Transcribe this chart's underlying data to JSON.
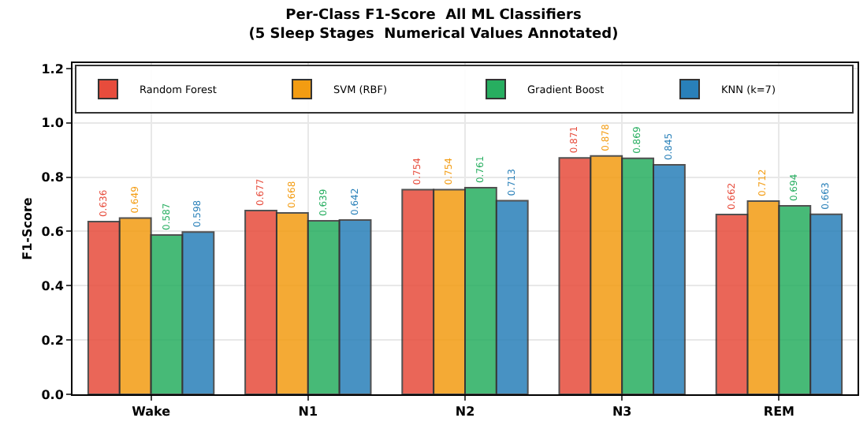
{
  "chart_data": {
    "type": "bar",
    "title": "Per-Class F1-Score  All ML Classifiers",
    "subtitle": "(5 Sleep Stages  Numerical Values Annotated)",
    "ylabel": "F1-Score",
    "categories": [
      "Wake",
      "N1",
      "N2",
      "N3",
      "REM"
    ],
    "series": [
      {
        "name": "Random Forest",
        "color": "#e74c3c",
        "values": [
          0.636,
          0.677,
          0.754,
          0.871,
          0.662
        ]
      },
      {
        "name": "SVM (RBF)",
        "color": "#f39c12",
        "values": [
          0.649,
          0.668,
          0.754,
          0.878,
          0.712
        ]
      },
      {
        "name": "Gradient Boost",
        "color": "#27ae60",
        "values": [
          0.587,
          0.639,
          0.761,
          0.869,
          0.694
        ]
      },
      {
        "name": "KNN (k=7)",
        "color": "#2980b9",
        "values": [
          0.598,
          0.642,
          0.713,
          0.845,
          0.663
        ]
      }
    ],
    "ylim": [
      0,
      1.22
    ],
    "yticks": [
      {
        "value": 0,
        "label": "0.0"
      },
      0.2,
      0.4,
      0.6,
      0.8,
      {
        "value": 1,
        "label": "1.0"
      },
      1.2
    ],
    "grid": true,
    "legend": "top right",
    "data_labels": true
  }
}
